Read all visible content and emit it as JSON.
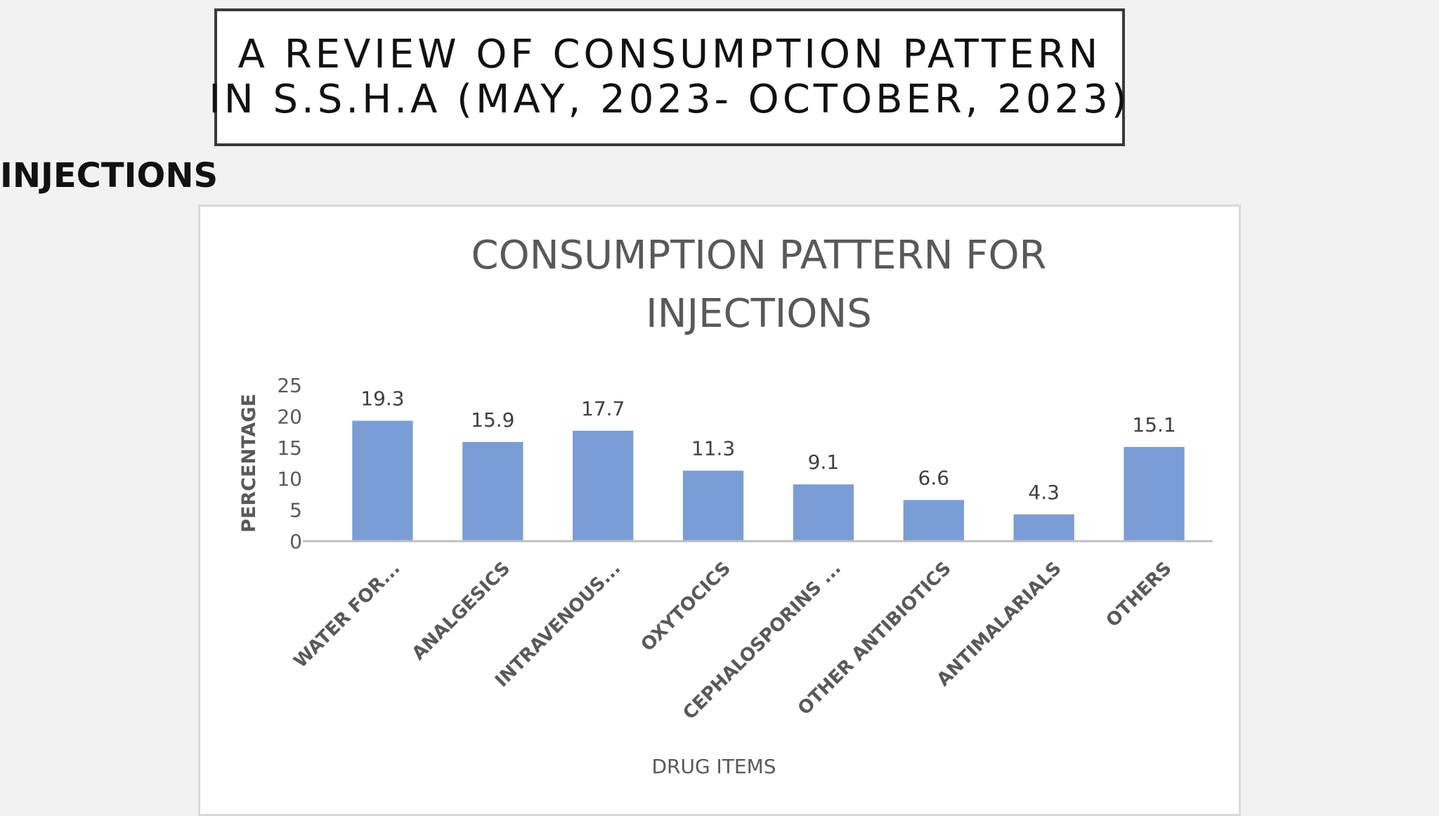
{
  "slide": {
    "title_line1": "A REVIEW OF CONSUMPTION PATTERN",
    "title_line2": "IN S.S.H.A (MAY, 2023- OCTOBER, 2023)",
    "section_heading": "INJECTIONS"
  },
  "chart_data": {
    "type": "bar",
    "title_lines": [
      "CONSUMPTION PATTERN FOR",
      "INJECTIONS"
    ],
    "xlabel": "DRUG ITEMS",
    "ylabel": "PERCENTAGE",
    "ylim": [
      0,
      25
    ],
    "yticks": [
      0,
      5,
      10,
      15,
      20,
      25
    ],
    "grid": false,
    "legend": "none",
    "categories": [
      "WATER FOR...",
      "ANALGESICS",
      "INTRAVENOUS...",
      "OXYTOCICS",
      "CEPHALOSPORINS ...",
      "OTHER ANTIBIOTICS",
      "ANTIMALARIALS",
      "OTHERS"
    ],
    "values": [
      19.3,
      15.9,
      17.7,
      11.3,
      9.1,
      6.6,
      4.3,
      15.1
    ],
    "value_labels": [
      "19.3",
      "15.9",
      "17.7",
      "11.3",
      "9.1",
      "6.6",
      "4.3",
      "15.1"
    ],
    "bar_color": "#7b9dd6",
    "axis_color": "#bfbfbf",
    "text_color": "#595959"
  }
}
